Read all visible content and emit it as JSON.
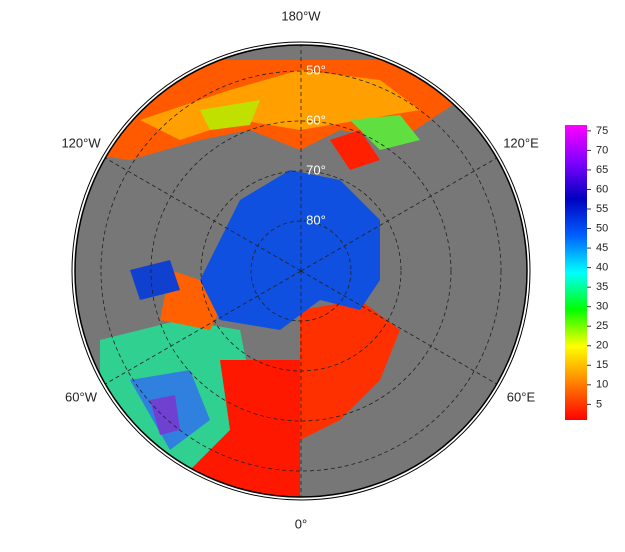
{
  "map": {
    "longitude_labels": [
      {
        "value": -180,
        "label": "180°W"
      },
      {
        "value": -120,
        "label": "120°W"
      },
      {
        "value": 120,
        "label": "120°E"
      },
      {
        "value": -60,
        "label": "60°W"
      },
      {
        "value": 60,
        "label": "60°E"
      },
      {
        "value": 0,
        "label": "0°"
      }
    ],
    "latitude_labels": [
      {
        "value": 50,
        "label": "50°"
      },
      {
        "value": 60,
        "label": "60°"
      },
      {
        "value": 70,
        "label": "70°"
      },
      {
        "value": 80,
        "label": "80°"
      }
    ]
  },
  "colorbar": {
    "lim": [
      1,
      76.5
    ],
    "ticks": [
      5,
      10,
      15,
      20,
      25,
      30,
      35,
      40,
      45,
      50,
      55,
      60,
      65,
      70,
      75
    ],
    "colors": [
      "#ff0000",
      "#ff8000",
      "#ffff00",
      "#00ff00",
      "#00ffff",
      "#0060ff",
      "#0000c0",
      "#8000ff",
      "#ff00ff"
    ]
  }
}
